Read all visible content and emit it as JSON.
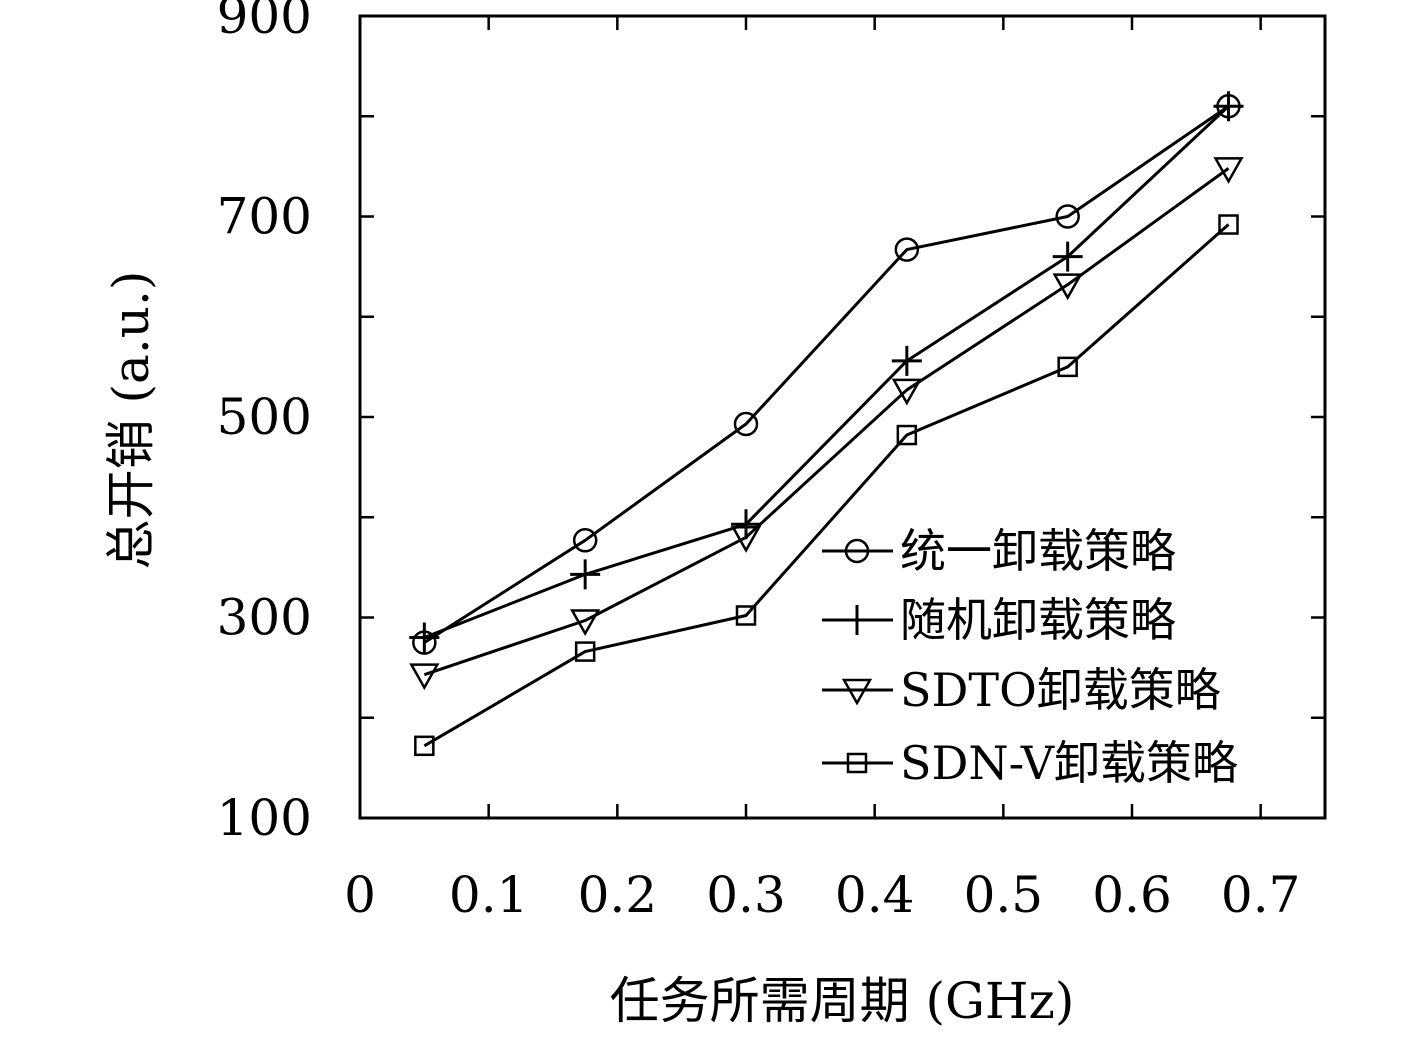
{
  "chart_data": {
    "type": "line",
    "xlabel": "任务所需周期 (GHz)",
    "ylabel": "总开销 (a.u.)",
    "xlim": [
      0,
      0.75
    ],
    "ylim": [
      100,
      900
    ],
    "x_ticks": [
      0,
      0.1,
      0.2,
      0.3,
      0.4,
      0.5,
      0.6,
      0.7
    ],
    "x_tick_labels": [
      "0",
      "0.1",
      "0.2",
      "0.3",
      "0.4",
      "0.5",
      "0.6",
      "0.7"
    ],
    "y_ticks": [
      100,
      200,
      300,
      400,
      500,
      600,
      700,
      800,
      900
    ],
    "y_tick_labels": [
      "100",
      "",
      "300",
      "",
      "500",
      "",
      "700",
      "",
      "900"
    ],
    "grid": false,
    "legend_position": "bottom-right",
    "x": [
      0.05,
      0.175,
      0.3,
      0.425,
      0.55,
      0.675
    ],
    "series": [
      {
        "name": "统一卸载策略",
        "marker": "circle",
        "values": [
          275,
          377,
          493,
          667,
          700,
          810
        ]
      },
      {
        "name": "随机卸载策略",
        "marker": "plus",
        "values": [
          280,
          343,
          393,
          556,
          660,
          810
        ]
      },
      {
        "name": "SDTO卸载策略",
        "marker": "triangle-down",
        "values": [
          243,
          297,
          380,
          527,
          632,
          748
        ]
      },
      {
        "name": "SDN-V卸载策略",
        "marker": "square",
        "values": [
          172,
          266,
          302,
          482,
          550,
          692
        ]
      }
    ]
  }
}
